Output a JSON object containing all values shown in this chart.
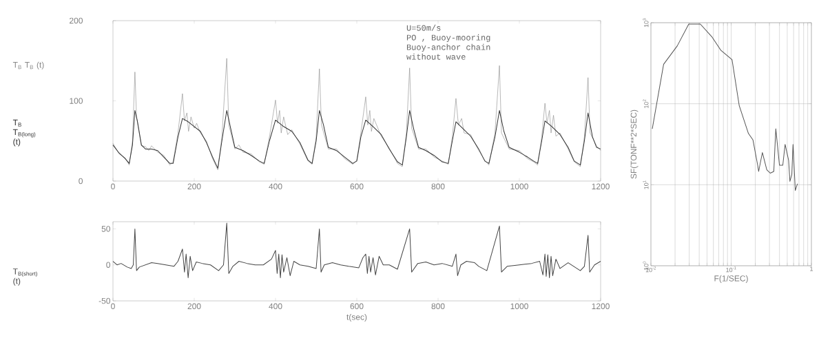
{
  "chart_data": [
    {
      "type": "line",
      "xlim": [
        0,
        1200
      ],
      "ylim": [
        0,
        200
      ],
      "xticks": [
        0,
        200,
        400,
        600,
        800,
        1000,
        1200
      ],
      "yticks": [
        0,
        100,
        200
      ],
      "annotations": [
        "U=50m/s",
        "PO , Buoy-mooring",
        "Buoy-anchor chain",
        "without wave"
      ],
      "series": [
        {
          "name": "T$_{B}$ T$_{B}$ (t)",
          "color": "#888888",
          "x": [
            0,
            15,
            30,
            40,
            48,
            54,
            58,
            70,
            80,
            88,
            95,
            110,
            125,
            140,
            148,
            160,
            171,
            176,
            182,
            186,
            192,
            200,
            206,
            215,
            230,
            245,
            258,
            268,
            280,
            285,
            300,
            310,
            320,
            340,
            360,
            372,
            385,
            400,
            405,
            410,
            414,
            420,
            430,
            440,
            460,
            480,
            490,
            500,
            508,
            513,
            530,
            550,
            570,
            590,
            600,
            610,
            622,
            627,
            632,
            636,
            642,
            660,
            680,
            700,
            712,
            722,
            730,
            735,
            752,
            770,
            790,
            810,
            825,
            835,
            844,
            850,
            858,
            864,
            880,
            900,
            915,
            925,
            940,
            951,
            956,
            975,
            1000,
            1020,
            1035,
            1045,
            1055,
            1063,
            1068,
            1074,
            1078,
            1084,
            1090,
            1100,
            1120,
            1135,
            1150,
            1160,
            1169,
            1174,
            1190,
            1200
          ],
          "values": [
            47,
            34,
            29,
            20,
            50,
            136,
            80,
            44,
            43,
            38,
            44,
            36,
            32,
            20,
            24,
            60,
            109,
            75,
            85,
            62,
            80,
            66,
            72,
            60,
            50,
            28,
            14,
            55,
            153,
            70,
            40,
            45,
            36,
            34,
            24,
            21,
            55,
            101,
            72,
            88,
            60,
            80,
            58,
            64,
            46,
            25,
            21,
            55,
            140,
            70,
            40,
            40,
            28,
            21,
            26,
            60,
            105,
            70,
            88,
            62,
            78,
            56,
            41,
            22,
            18,
            60,
            141,
            66,
            40,
            40,
            30,
            25,
            21,
            55,
            103,
            70,
            78,
            60,
            58,
            38,
            26,
            20,
            60,
            144,
            60,
            40,
            38,
            28,
            24,
            20,
            55,
            97,
            72,
            88,
            60,
            82,
            56,
            60,
            40,
            24,
            18,
            55,
            129,
            60,
            44,
            38
          ]
        },
        {
          "name": "T$_{B}$ T$_{B(long)}$ (t)",
          "color": "#333333",
          "x": [
            0,
            15,
            30,
            40,
            48,
            54,
            60,
            70,
            80,
            95,
            110,
            125,
            140,
            148,
            160,
            171,
            185,
            200,
            215,
            230,
            245,
            258,
            268,
            280,
            290,
            300,
            320,
            340,
            360,
            372,
            385,
            400,
            420,
            440,
            460,
            480,
            490,
            500,
            508,
            518,
            530,
            550,
            570,
            590,
            600,
            610,
            622,
            640,
            660,
            680,
            700,
            712,
            722,
            730,
            740,
            752,
            770,
            790,
            810,
            825,
            835,
            844,
            860,
            880,
            900,
            915,
            925,
            940,
            951,
            962,
            975,
            1000,
            1020,
            1035,
            1045,
            1055,
            1063,
            1080,
            1100,
            1120,
            1135,
            1150,
            1160,
            1169,
            1180,
            1190,
            1200
          ],
          "values": [
            45,
            35,
            28,
            22,
            45,
            88,
            75,
            45,
            40,
            40,
            38,
            30,
            22,
            22,
            55,
            78,
            74,
            68,
            62,
            48,
            30,
            16,
            50,
            88,
            65,
            42,
            38,
            32,
            25,
            22,
            50,
            76,
            68,
            62,
            48,
            26,
            22,
            50,
            88,
            70,
            42,
            38,
            30,
            22,
            25,
            55,
            76,
            68,
            58,
            40,
            24,
            20,
            55,
            88,
            65,
            42,
            38,
            32,
            24,
            22,
            50,
            74,
            66,
            56,
            40,
            25,
            22,
            55,
            88,
            62,
            42,
            36,
            30,
            25,
            22,
            50,
            75,
            68,
            58,
            42,
            25,
            20,
            50,
            85,
            55,
            42,
            40
          ]
        }
      ]
    },
    {
      "type": "line",
      "xlim": [
        0,
        1200
      ],
      "ylim": [
        -50,
        60
      ],
      "xticks": [
        0,
        200,
        400,
        600,
        800,
        1000,
        1200
      ],
      "yticks": [
        -50,
        0,
        50
      ],
      "xlabel": "t(sec)",
      "series": [
        {
          "name": "T$_{B(short)}$ (t)",
          "color": "#444444",
          "x": [
            0,
            10,
            20,
            35,
            45,
            50,
            54,
            58,
            65,
            80,
            95,
            110,
            130,
            150,
            160,
            171,
            176,
            180,
            185,
            190,
            196,
            205,
            220,
            240,
            260,
            272,
            280,
            285,
            295,
            310,
            330,
            350,
            370,
            390,
            400,
            404,
            408,
            412,
            416,
            420,
            428,
            436,
            445,
            460,
            480,
            500,
            508,
            512,
            520,
            540,
            560,
            580,
            605,
            615,
            622,
            626,
            630,
            634,
            640,
            646,
            655,
            665,
            680,
            700,
            730,
            735,
            750,
            770,
            790,
            810,
            835,
            844,
            848,
            856,
            870,
            890,
            900,
            920,
            951,
            956,
            970,
            1000,
            1030,
            1050,
            1058,
            1063,
            1066,
            1070,
            1074,
            1078,
            1082,
            1090,
            1100,
            1120,
            1150,
            1160,
            1169,
            1173,
            1185,
            1200
          ],
          "values": [
            5,
            0,
            2,
            -3,
            -5,
            0,
            50,
            -8,
            -3,
            0,
            3,
            2,
            0,
            -2,
            5,
            22,
            -10,
            15,
            -18,
            12,
            -8,
            4,
            2,
            0,
            -8,
            0,
            58,
            -12,
            -2,
            5,
            2,
            0,
            0,
            8,
            20,
            -12,
            15,
            -18,
            14,
            -10,
            10,
            -15,
            5,
            0,
            -2,
            -5,
            50,
            -10,
            0,
            3,
            0,
            -2,
            -4,
            10,
            15,
            -12,
            12,
            -10,
            10,
            -14,
            12,
            0,
            0,
            -6,
            50,
            -10,
            2,
            4,
            0,
            2,
            -2,
            15,
            -15,
            0,
            5,
            3,
            -2,
            -8,
            54,
            -10,
            -2,
            0,
            2,
            5,
            -14,
            15,
            -16,
            14,
            -18,
            12,
            -15,
            8,
            -5,
            3,
            -8,
            -2,
            41,
            -10,
            0,
            5
          ]
        }
      ]
    },
    {
      "type": "line",
      "log": "xy",
      "grid": true,
      "xlim": [
        0.01,
        1
      ],
      "ylim": [
        1,
        1000
      ],
      "xticks": [
        {
          "value": 0.01,
          "label": "10$^{-2}$"
        },
        {
          "value": 0.02,
          "label": null
        },
        {
          "value": 0.03,
          "label": null
        },
        {
          "value": 0.04,
          "label": null
        },
        {
          "value": 0.05,
          "label": null
        },
        {
          "value": 0.06,
          "label": null
        },
        {
          "value": 0.07,
          "label": null
        },
        {
          "value": 0.08,
          "label": null
        },
        {
          "value": 0.09,
          "label": null
        },
        {
          "value": 0.1,
          "label": "10$^{-1}$"
        },
        {
          "value": 0.2,
          "label": null
        },
        {
          "value": 0.3,
          "label": null
        },
        {
          "value": 0.4,
          "label": null
        },
        {
          "value": 0.5,
          "label": null
        },
        {
          "value": 0.6,
          "label": null
        },
        {
          "value": 0.7,
          "label": null
        },
        {
          "value": 0.8,
          "label": null
        },
        {
          "value": 0.9,
          "label": null
        },
        {
          "value": 1,
          "label": "1"
        }
      ],
      "yticks": [
        {
          "value": 1,
          "label": "10$^{0}$"
        },
        {
          "value": 10,
          "label": "10$^{1}$"
        },
        {
          "value": 100,
          "label": "10$^{2}$"
        },
        {
          "value": 1000,
          "label": "10$^{3}$"
        }
      ],
      "xlabel": "F(1/SEC)",
      "ylabel": "SF(TONF**2*SEC)",
      "series": [
        {
          "color": "#555555",
          "x": [
            0.0104,
            0.0144,
            0.0213,
            0.0296,
            0.0413,
            0.0574,
            0.0746,
            0.1025,
            0.126,
            0.164,
            0.187,
            0.214,
            0.22,
            0.245,
            0.278,
            0.307,
            0.34,
            0.36,
            0.4,
            0.44,
            0.47,
            0.52,
            0.54,
            0.57,
            0.59,
            0.63,
            0.67
          ],
          "values": [
            49,
            307,
            518,
            961,
            961,
            672,
            455,
            350,
            95,
            43,
            35.7,
            17.4,
            14.6,
            25,
            15.3,
            13.9,
            14.6,
            49,
            17.4,
            17.4,
            31.5,
            20,
            11,
            13.4,
            31.5,
            8.5,
            10.3
          ]
        }
      ]
    }
  ]
}
